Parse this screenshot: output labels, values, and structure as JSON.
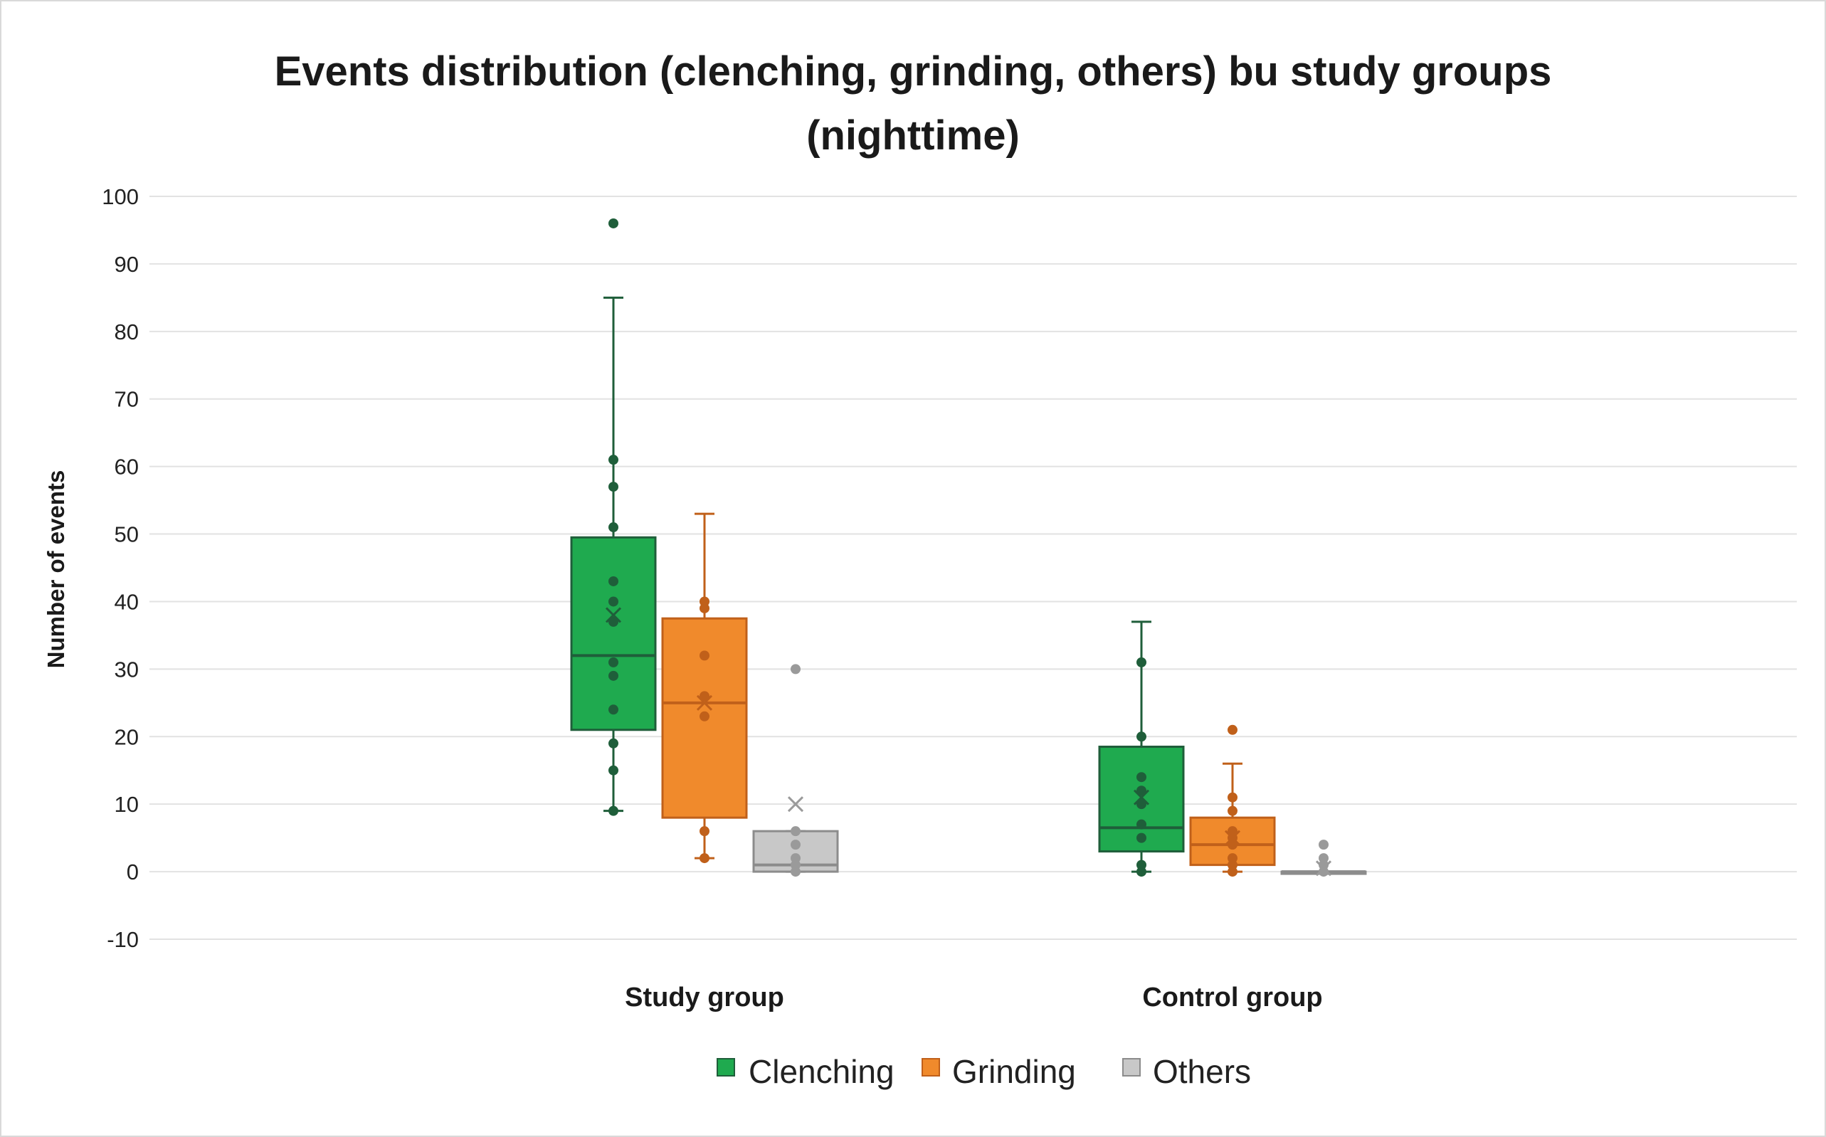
{
  "chart_data": {
    "type": "box",
    "title_lines": [
      "Events distribution (clenching, grinding, others) bu study groups",
      "(nighttime)"
    ],
    "xlabel": "",
    "ylabel": "Number of events",
    "ylim": [
      -10,
      100
    ],
    "yticks": [
      100,
      90,
      80,
      70,
      60,
      50,
      40,
      30,
      20,
      10,
      0,
      -10
    ],
    "ytick_labels": [
      "100",
      "90",
      "80",
      "70",
      "60",
      "50",
      "40",
      "30",
      "20",
      "10",
      "0",
      "-10"
    ],
    "grid": true,
    "legend_position": "bottom-center",
    "categories": [
      "Study group",
      "Control group"
    ],
    "series": [
      {
        "name": "Clenching",
        "color": "#1faa4f",
        "edge_color": "#1f5e3a",
        "point_color": "#1f5e3a",
        "boxes": [
          {
            "min": 9,
            "q1": 21,
            "median": 32,
            "q3": 49.5,
            "max": 85,
            "mean": 38,
            "points": [
              9,
              15,
              19,
              24,
              29,
              31,
              37,
              40,
              43,
              51,
              57,
              61,
              96
            ]
          },
          {
            "min": 0,
            "q1": 3,
            "median": 6.5,
            "q3": 18.5,
            "max": 37,
            "mean": 11,
            "points": [
              0,
              1,
              5,
              7,
              10,
              12,
              14,
              20,
              31
            ]
          }
        ]
      },
      {
        "name": "Grinding",
        "color": "#f08a2c",
        "edge_color": "#c0601a",
        "point_color": "#c0601a",
        "boxes": [
          {
            "min": 2,
            "q1": 8,
            "median": 25,
            "q3": 37.5,
            "max": 53,
            "mean": 25,
            "points": [
              2,
              6,
              23,
              26,
              32,
              39,
              40
            ]
          },
          {
            "min": 0,
            "q1": 1,
            "median": 4,
            "q3": 8,
            "max": 16,
            "mean": 5,
            "points": [
              0,
              1,
              2,
              4,
              5,
              6,
              9,
              11,
              21
            ]
          }
        ]
      },
      {
        "name": "Others",
        "color": "#c8c8c8",
        "edge_color": "#8c8c8c",
        "point_color": "#9a9a9a",
        "boxes": [
          {
            "min": 0,
            "q1": 0,
            "median": 1,
            "q3": 6,
            "max": 6,
            "mean": 10,
            "points": [
              0,
              1,
              2,
              4,
              6,
              30
            ]
          },
          {
            "min": 0,
            "q1": 0,
            "median": 0,
            "q3": 0,
            "max": 0,
            "mean": 0.5,
            "points": [
              0,
              1,
              2,
              4
            ]
          }
        ]
      }
    ]
  }
}
